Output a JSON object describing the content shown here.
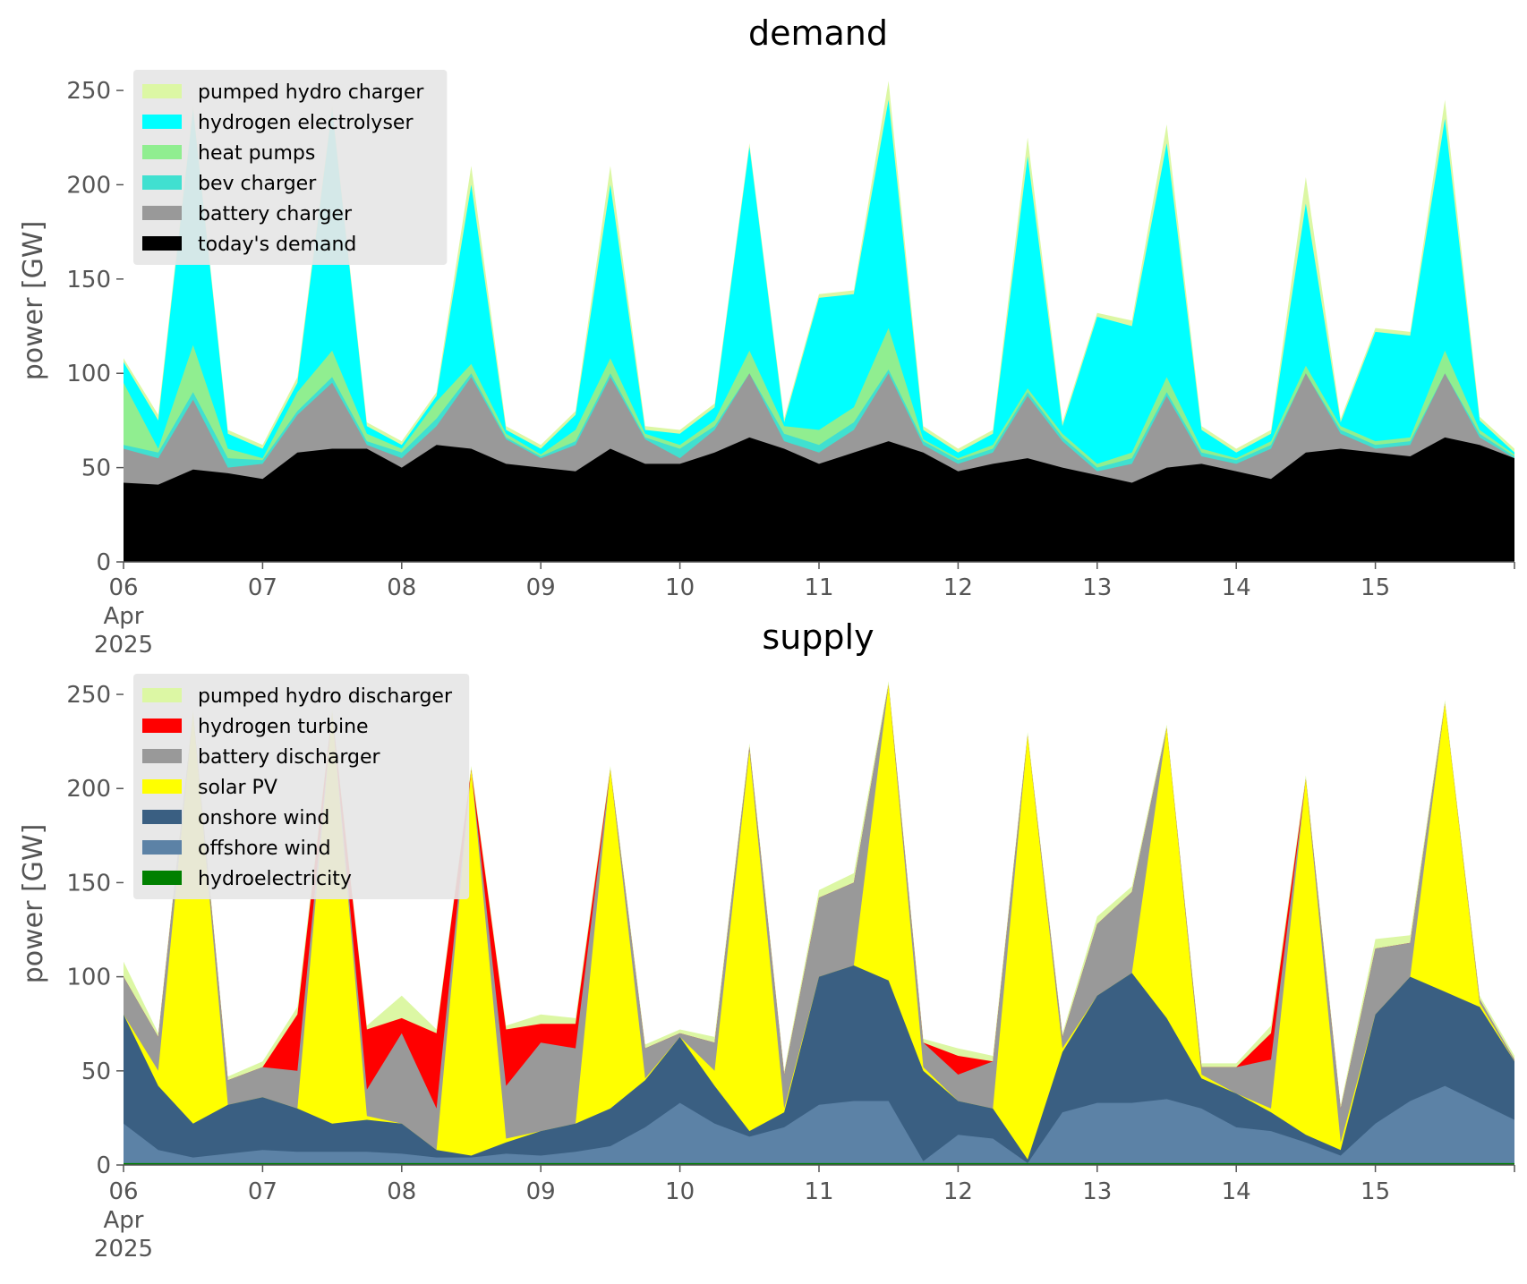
{
  "colors": {
    "pumped_hydro": "#dcf7a4",
    "hydrogen_electrolyser": "#00ffff",
    "heat_pumps": "#90ee90",
    "bev_charger": "#40e0d0",
    "battery": "#999999",
    "todays_demand": "#000000",
    "hydrogen_turbine": "#ff0000",
    "solar_pv": "#ffff00",
    "onshore_wind": "#3a5f82",
    "offshore_wind": "#5c82a6",
    "hydroelectricity": "#008000",
    "legend_bg": "#e6e6e6"
  },
  "chart_data": [
    {
      "type": "area",
      "title": "demand",
      "ylabel": "power [GW]",
      "xlabel": "",
      "ylim": [
        0,
        260
      ],
      "yticks": [
        0,
        50,
        100,
        150,
        200,
        250
      ],
      "xlim": [
        "2025-04-06",
        "2025-04-16"
      ],
      "x_tick_labels": [
        "06\nApr\n2025",
        "07",
        "08",
        "09",
        "10",
        "11",
        "12",
        "13",
        "14",
        "15"
      ],
      "grid": false,
      "legend_position": "top-left",
      "legend": [
        "pumped hydro charger",
        "hydrogen electrolyser",
        "heat pumps",
        "bev charger",
        "battery charger",
        "today's demand"
      ],
      "note": "stacked cumulative totals (GW); 4 points per day at 00, 06, 12, 18 h",
      "x": [
        "2025-04-06 00:00",
        "2025-04-06 06:00",
        "2025-04-06 12:00",
        "2025-04-06 18:00",
        "2025-04-07 00:00",
        "2025-04-07 06:00",
        "2025-04-07 12:00",
        "2025-04-07 18:00",
        "2025-04-08 00:00",
        "2025-04-08 06:00",
        "2025-04-08 12:00",
        "2025-04-08 18:00",
        "2025-04-09 00:00",
        "2025-04-09 06:00",
        "2025-04-09 12:00",
        "2025-04-09 18:00",
        "2025-04-10 00:00",
        "2025-04-10 06:00",
        "2025-04-10 12:00",
        "2025-04-10 18:00",
        "2025-04-11 00:00",
        "2025-04-11 06:00",
        "2025-04-11 12:00",
        "2025-04-11 18:00",
        "2025-04-12 00:00",
        "2025-04-12 06:00",
        "2025-04-12 12:00",
        "2025-04-12 18:00",
        "2025-04-13 00:00",
        "2025-04-13 06:00",
        "2025-04-13 12:00",
        "2025-04-13 18:00",
        "2025-04-14 00:00",
        "2025-04-14 06:00",
        "2025-04-14 12:00",
        "2025-04-14 18:00",
        "2025-04-15 00:00",
        "2025-04-15 06:00",
        "2025-04-15 12:00",
        "2025-04-15 18:00",
        "2025-04-16 00:00"
      ],
      "series": [
        {
          "name": "today's demand",
          "color_key": "todays_demand",
          "values": [
            42,
            41,
            49,
            47,
            44,
            58,
            60,
            60,
            50,
            62,
            60,
            52,
            50,
            48,
            60,
            52,
            52,
            58,
            66,
            60,
            52,
            58,
            64,
            58,
            48,
            52,
            55,
            50,
            46,
            42,
            50,
            52,
            48,
            44,
            58,
            60,
            58,
            56,
            66,
            62,
            55
          ]
        },
        {
          "name": "battery charger",
          "color_key": "battery",
          "values": [
            60,
            55,
            86,
            50,
            52,
            78,
            95,
            62,
            55,
            72,
            98,
            65,
            55,
            62,
            98,
            65,
            55,
            70,
            100,
            64,
            58,
            70,
            100,
            62,
            52,
            58,
            88,
            64,
            48,
            52,
            88,
            56,
            52,
            60,
            100,
            68,
            60,
            62,
            100,
            66,
            55
          ]
        },
        {
          "name": "bev charger",
          "color_key": "bev_charger",
          "values": [
            62,
            58,
            90,
            55,
            54,
            80,
            98,
            64,
            58,
            76,
            100,
            66,
            56,
            64,
            100,
            66,
            60,
            72,
            100,
            68,
            62,
            74,
            102,
            64,
            54,
            60,
            90,
            66,
            50,
            55,
            90,
            58,
            54,
            62,
            100,
            70,
            62,
            64,
            100,
            68,
            56
          ]
        },
        {
          "name": "heat pumps",
          "color_key": "heat_pumps",
          "values": [
            95,
            60,
            115,
            60,
            55,
            90,
            112,
            68,
            60,
            85,
            105,
            68,
            57,
            70,
            108,
            68,
            62,
            75,
            112,
            72,
            70,
            82,
            124,
            65,
            55,
            62,
            92,
            68,
            52,
            58,
            98,
            60,
            55,
            64,
            104,
            72,
            64,
            66,
            112,
            70,
            57
          ]
        },
        {
          "name": "hydrogen electrolyser",
          "color_key": "hydrogen_electrolyser",
          "values": [
            106,
            75,
            240,
            68,
            60,
            95,
            240,
            72,
            62,
            88,
            200,
            70,
            60,
            78,
            200,
            70,
            68,
            82,
            220,
            74,
            140,
            142,
            245,
            70,
            58,
            68,
            215,
            72,
            130,
            125,
            222,
            70,
            58,
            68,
            190,
            74,
            122,
            120,
            235,
            75,
            58
          ]
        },
        {
          "name": "pumped hydro charger",
          "color_key": "pumped_hydro",
          "values": [
            108,
            78,
            242,
            70,
            62,
            98,
            242,
            74,
            64,
            90,
            210,
            72,
            62,
            80,
            210,
            72,
            70,
            84,
            222,
            76,
            142,
            144,
            255,
            72,
            60,
            70,
            225,
            74,
            132,
            128,
            232,
            72,
            60,
            70,
            204,
            76,
            124,
            122,
            245,
            77,
            60
          ]
        }
      ]
    },
    {
      "type": "area",
      "title": "supply",
      "ylabel": "power [GW]",
      "xlabel": "",
      "ylim": [
        0,
        260
      ],
      "yticks": [
        0,
        50,
        100,
        150,
        200,
        250
      ],
      "xlim": [
        "2025-04-06",
        "2025-04-16"
      ],
      "x_tick_labels": [
        "06\nApr\n2025",
        "07",
        "08",
        "09",
        "10",
        "11",
        "12",
        "13",
        "14",
        "15"
      ],
      "grid": false,
      "legend_position": "top-left",
      "legend": [
        "pumped hydro discharger",
        "hydrogen turbine",
        "battery discharger",
        "solar PV",
        "onshore wind",
        "offshore wind",
        "hydroelectricity"
      ],
      "note": "stacked cumulative totals (GW); 4 points per day at 00, 06, 12, 18 h",
      "x": [
        "2025-04-06 00:00",
        "2025-04-06 06:00",
        "2025-04-06 12:00",
        "2025-04-06 18:00",
        "2025-04-07 00:00",
        "2025-04-07 06:00",
        "2025-04-07 12:00",
        "2025-04-07 18:00",
        "2025-04-08 00:00",
        "2025-04-08 06:00",
        "2025-04-08 12:00",
        "2025-04-08 18:00",
        "2025-04-09 00:00",
        "2025-04-09 06:00",
        "2025-04-09 12:00",
        "2025-04-09 18:00",
        "2025-04-10 00:00",
        "2025-04-10 06:00",
        "2025-04-10 12:00",
        "2025-04-10 18:00",
        "2025-04-11 00:00",
        "2025-04-11 06:00",
        "2025-04-11 12:00",
        "2025-04-11 18:00",
        "2025-04-12 00:00",
        "2025-04-12 06:00",
        "2025-04-12 12:00",
        "2025-04-12 18:00",
        "2025-04-13 00:00",
        "2025-04-13 06:00",
        "2025-04-13 12:00",
        "2025-04-13 18:00",
        "2025-04-14 00:00",
        "2025-04-14 06:00",
        "2025-04-14 12:00",
        "2025-04-14 18:00",
        "2025-04-15 00:00",
        "2025-04-15 06:00",
        "2025-04-15 12:00",
        "2025-04-15 18:00",
        "2025-04-16 00:00"
      ],
      "series": [
        {
          "name": "hydroelectricity",
          "color_key": "hydroelectricity",
          "values": [
            1,
            1,
            1,
            1,
            1,
            1,
            1,
            1,
            1,
            1,
            1,
            1,
            1,
            1,
            1,
            1,
            1,
            1,
            1,
            1,
            1,
            1,
            1,
            1,
            1,
            1,
            1,
            1,
            1,
            1,
            1,
            1,
            1,
            1,
            1,
            1,
            1,
            1,
            1,
            1,
            1
          ]
        },
        {
          "name": "offshore wind",
          "color_key": "offshore_wind",
          "values": [
            22,
            8,
            4,
            6,
            8,
            7,
            7,
            7,
            6,
            4,
            4,
            6,
            5,
            7,
            10,
            20,
            33,
            22,
            15,
            20,
            32,
            34,
            34,
            2,
            16,
            14,
            1,
            28,
            33,
            33,
            35,
            30,
            20,
            18,
            12,
            5,
            22,
            34,
            42,
            33,
            24
          ]
        },
        {
          "name": "onshore wind",
          "color_key": "onshore_wind",
          "values": [
            80,
            42,
            22,
            32,
            36,
            30,
            22,
            24,
            22,
            8,
            5,
            12,
            18,
            22,
            30,
            45,
            68,
            42,
            18,
            28,
            100,
            106,
            98,
            50,
            34,
            30,
            3,
            60,
            90,
            102,
            78,
            46,
            38,
            28,
            16,
            8,
            80,
            100,
            92,
            84,
            55
          ]
        },
        {
          "name": "solar PV",
          "color_key": "solar_pv",
          "values": [
            80,
            50,
            240,
            32,
            36,
            30,
            240,
            26,
            22,
            8,
            210,
            14,
            18,
            22,
            210,
            46,
            68,
            50,
            220,
            30,
            100,
            106,
            255,
            52,
            34,
            30,
            228,
            62,
            90,
            102,
            232,
            48,
            38,
            30,
            205,
            12,
            80,
            100,
            245,
            86,
            55
          ]
        },
        {
          "name": "battery discharger",
          "color_key": "battery",
          "values": [
            100,
            68,
            240,
            45,
            52,
            50,
            240,
            40,
            70,
            30,
            210,
            42,
            65,
            62,
            210,
            62,
            70,
            65,
            222,
            48,
            142,
            150,
            255,
            65,
            48,
            55,
            228,
            68,
            128,
            145,
            232,
            52,
            52,
            56,
            205,
            30,
            115,
            118,
            245,
            88,
            56
          ]
        },
        {
          "name": "hydrogen turbine",
          "color_key": "hydrogen_turbine",
          "values": [
            100,
            68,
            240,
            45,
            52,
            80,
            240,
            72,
            78,
            70,
            210,
            72,
            75,
            75,
            210,
            62,
            70,
            65,
            222,
            48,
            142,
            150,
            255,
            65,
            58,
            55,
            228,
            68,
            128,
            145,
            232,
            52,
            52,
            70,
            205,
            30,
            115,
            118,
            245,
            88,
            56
          ]
        },
        {
          "name": "pumped hydro discharger",
          "color_key": "pumped_hydro",
          "values": [
            108,
            70,
            242,
            47,
            55,
            84,
            242,
            74,
            90,
            72,
            212,
            74,
            80,
            78,
            212,
            64,
            72,
            68,
            224,
            50,
            146,
            155,
            257,
            67,
            62,
            58,
            230,
            70,
            132,
            148,
            234,
            54,
            54,
            74,
            207,
            32,
            120,
            122,
            247,
            90,
            58
          ]
        }
      ]
    }
  ]
}
